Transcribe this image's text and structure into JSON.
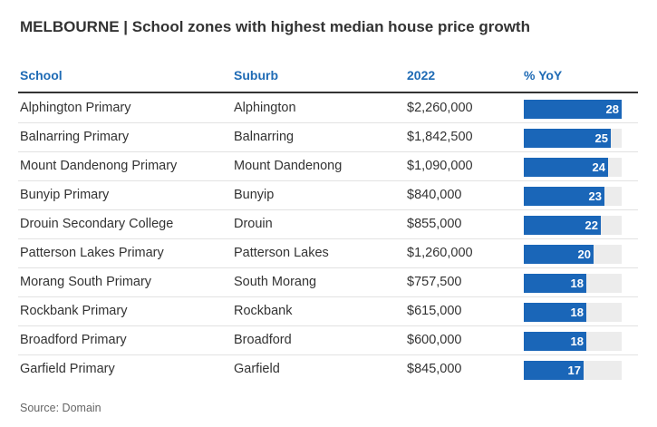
{
  "title": "MELBOURNE | School zones with highest median house price growth",
  "headers": {
    "school": "School",
    "suburb": "Suburb",
    "price": "2022",
    "yoy": "% YoY"
  },
  "colors": {
    "accent": "#1f6bb5",
    "bar": "#1a66b8",
    "track": "#ececec"
  },
  "source": "Source: Domain",
  "chart_data": {
    "type": "table",
    "columns": [
      "School",
      "Suburb",
      "2022",
      "% YoY"
    ],
    "bar_max": 28,
    "rows": [
      {
        "school": "Alphington Primary",
        "suburb": "Alphington",
        "price": "$2,260,000",
        "yoy": 28
      },
      {
        "school": "Balnarring Primary",
        "suburb": "Balnarring",
        "price": "$1,842,500",
        "yoy": 25
      },
      {
        "school": "Mount Dandenong Primary",
        "suburb": "Mount Dandenong",
        "price": "$1,090,000",
        "yoy": 24
      },
      {
        "school": "Bunyip Primary",
        "suburb": "Bunyip",
        "price": "$840,000",
        "yoy": 23
      },
      {
        "school": "Drouin Secondary College",
        "suburb": "Drouin",
        "price": "$855,000",
        "yoy": 22
      },
      {
        "school": "Patterson Lakes Primary",
        "suburb": "Patterson Lakes",
        "price": "$1,260,000",
        "yoy": 20
      },
      {
        "school": "Morang South Primary",
        "suburb": "South Morang",
        "price": "$757,500",
        "yoy": 18
      },
      {
        "school": "Rockbank Primary",
        "suburb": "Rockbank",
        "price": "$615,000",
        "yoy": 18
      },
      {
        "school": "Broadford Primary",
        "suburb": "Broadford",
        "price": "$600,000",
        "yoy": 18
      },
      {
        "school": "Garfield Primary",
        "suburb": "Garfield",
        "price": "$845,000",
        "yoy": 17
      }
    ]
  }
}
